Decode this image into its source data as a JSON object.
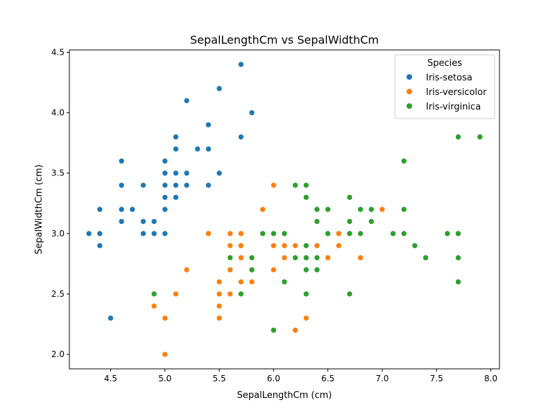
{
  "chart_data": {
    "type": "scatter",
    "title": "SepalLengthCm vs SepalWidthCm",
    "xlabel": "SepalLengthCm (cm)",
    "ylabel": "SepalWidthCm (cm)",
    "xlim": [
      4.12,
      8.08
    ],
    "ylim": [
      1.88,
      4.52
    ],
    "xticks": [
      "4.5",
      "5.0",
      "5.5",
      "6.0",
      "6.5",
      "7.0",
      "7.5",
      "8.0"
    ],
    "yticks": [
      "2.0",
      "2.5",
      "3.0",
      "3.5",
      "4.0",
      "4.5"
    ],
    "grid": false,
    "legend": {
      "title": "Species",
      "placement": "top-right"
    },
    "series": [
      {
        "name": "Iris-setosa",
        "color": "#1f77b4",
        "points": [
          [
            5.1,
            3.5
          ],
          [
            4.9,
            3.0
          ],
          [
            4.7,
            3.2
          ],
          [
            4.6,
            3.1
          ],
          [
            5.0,
            3.6
          ],
          [
            5.4,
            3.9
          ],
          [
            4.6,
            3.4
          ],
          [
            5.0,
            3.4
          ],
          [
            4.4,
            2.9
          ],
          [
            4.9,
            3.1
          ],
          [
            5.4,
            3.7
          ],
          [
            4.8,
            3.4
          ],
          [
            4.8,
            3.0
          ],
          [
            4.3,
            3.0
          ],
          [
            5.8,
            4.0
          ],
          [
            5.7,
            4.4
          ],
          [
            5.4,
            3.9
          ],
          [
            5.1,
            3.5
          ],
          [
            5.7,
            3.8
          ],
          [
            5.1,
            3.8
          ],
          [
            5.4,
            3.4
          ],
          [
            5.1,
            3.7
          ],
          [
            4.6,
            3.6
          ],
          [
            5.1,
            3.3
          ],
          [
            4.8,
            3.4
          ],
          [
            5.0,
            3.0
          ],
          [
            5.0,
            3.4
          ],
          [
            5.2,
            3.5
          ],
          [
            5.2,
            3.4
          ],
          [
            4.7,
            3.2
          ],
          [
            4.8,
            3.1
          ],
          [
            5.4,
            3.4
          ],
          [
            5.2,
            4.1
          ],
          [
            5.5,
            4.2
          ],
          [
            4.9,
            3.1
          ],
          [
            5.0,
            3.2
          ],
          [
            5.5,
            3.5
          ],
          [
            4.9,
            3.1
          ],
          [
            4.4,
            3.0
          ],
          [
            5.1,
            3.4
          ],
          [
            5.0,
            3.5
          ],
          [
            4.5,
            2.3
          ],
          [
            4.4,
            3.2
          ],
          [
            5.0,
            3.5
          ],
          [
            5.1,
            3.8
          ],
          [
            4.8,
            3.0
          ],
          [
            5.1,
            3.8
          ],
          [
            4.6,
            3.2
          ],
          [
            5.3,
            3.7
          ],
          [
            5.0,
            3.3
          ]
        ]
      },
      {
        "name": "Iris-versicolor",
        "color": "#ff7f0e",
        "points": [
          [
            7.0,
            3.2
          ],
          [
            6.4,
            3.2
          ],
          [
            6.9,
            3.1
          ],
          [
            5.5,
            2.3
          ],
          [
            6.5,
            2.8
          ],
          [
            5.7,
            2.8
          ],
          [
            6.3,
            3.3
          ],
          [
            4.9,
            2.4
          ],
          [
            6.6,
            2.9
          ],
          [
            5.2,
            2.7
          ],
          [
            5.0,
            2.0
          ],
          [
            5.9,
            3.0
          ],
          [
            6.0,
            2.2
          ],
          [
            6.1,
            2.9
          ],
          [
            5.6,
            2.9
          ],
          [
            6.7,
            3.1
          ],
          [
            5.6,
            3.0
          ],
          [
            5.8,
            2.7
          ],
          [
            6.2,
            2.2
          ],
          [
            5.6,
            2.5
          ],
          [
            5.9,
            3.2
          ],
          [
            6.1,
            2.8
          ],
          [
            6.3,
            2.5
          ],
          [
            6.1,
            2.8
          ],
          [
            6.4,
            2.9
          ],
          [
            6.6,
            3.0
          ],
          [
            6.8,
            2.8
          ],
          [
            6.7,
            3.0
          ],
          [
            6.0,
            2.9
          ],
          [
            5.7,
            2.6
          ],
          [
            5.5,
            2.4
          ],
          [
            5.5,
            2.4
          ],
          [
            5.8,
            2.7
          ],
          [
            6.0,
            2.7
          ],
          [
            5.4,
            3.0
          ],
          [
            6.0,
            3.4
          ],
          [
            6.7,
            3.1
          ],
          [
            6.3,
            2.3
          ],
          [
            5.6,
            3.0
          ],
          [
            5.5,
            2.5
          ],
          [
            5.5,
            2.6
          ],
          [
            6.1,
            3.0
          ],
          [
            5.8,
            2.6
          ],
          [
            5.0,
            2.3
          ],
          [
            5.6,
            2.7
          ],
          [
            5.7,
            3.0
          ],
          [
            5.7,
            2.9
          ],
          [
            6.2,
            2.9
          ],
          [
            5.1,
            2.5
          ],
          [
            5.7,
            2.8
          ]
        ]
      },
      {
        "name": "Iris-virginica",
        "color": "#2ca02c",
        "points": [
          [
            6.3,
            3.3
          ],
          [
            5.8,
            2.7
          ],
          [
            7.1,
            3.0
          ],
          [
            6.3,
            2.9
          ],
          [
            6.5,
            3.0
          ],
          [
            7.6,
            3.0
          ],
          [
            4.9,
            2.5
          ],
          [
            7.3,
            2.9
          ],
          [
            6.7,
            2.5
          ],
          [
            7.2,
            3.6
          ],
          [
            6.5,
            3.2
          ],
          [
            6.4,
            2.7
          ],
          [
            6.8,
            3.0
          ],
          [
            5.7,
            2.5
          ],
          [
            5.8,
            2.8
          ],
          [
            6.4,
            3.2
          ],
          [
            6.5,
            3.0
          ],
          [
            7.7,
            3.8
          ],
          [
            7.7,
            2.6
          ],
          [
            6.0,
            2.2
          ],
          [
            6.9,
            3.2
          ],
          [
            5.6,
            2.8
          ],
          [
            7.7,
            2.8
          ],
          [
            6.3,
            2.7
          ],
          [
            6.7,
            3.3
          ],
          [
            7.2,
            3.2
          ],
          [
            6.2,
            2.8
          ],
          [
            6.1,
            3.0
          ],
          [
            6.4,
            2.8
          ],
          [
            7.2,
            3.0
          ],
          [
            7.4,
            2.8
          ],
          [
            7.9,
            3.8
          ],
          [
            6.4,
            2.8
          ],
          [
            6.3,
            2.8
          ],
          [
            6.1,
            2.6
          ],
          [
            7.7,
            3.0
          ],
          [
            6.3,
            3.4
          ],
          [
            6.4,
            3.1
          ],
          [
            6.0,
            3.0
          ],
          [
            6.9,
            3.1
          ],
          [
            6.7,
            3.1
          ],
          [
            6.9,
            3.1
          ],
          [
            5.8,
            2.7
          ],
          [
            6.8,
            3.2
          ],
          [
            6.7,
            3.3
          ],
          [
            6.7,
            3.0
          ],
          [
            6.3,
            2.5
          ],
          [
            6.5,
            3.0
          ],
          [
            6.2,
            3.4
          ],
          [
            5.9,
            3.0
          ]
        ]
      }
    ]
  }
}
